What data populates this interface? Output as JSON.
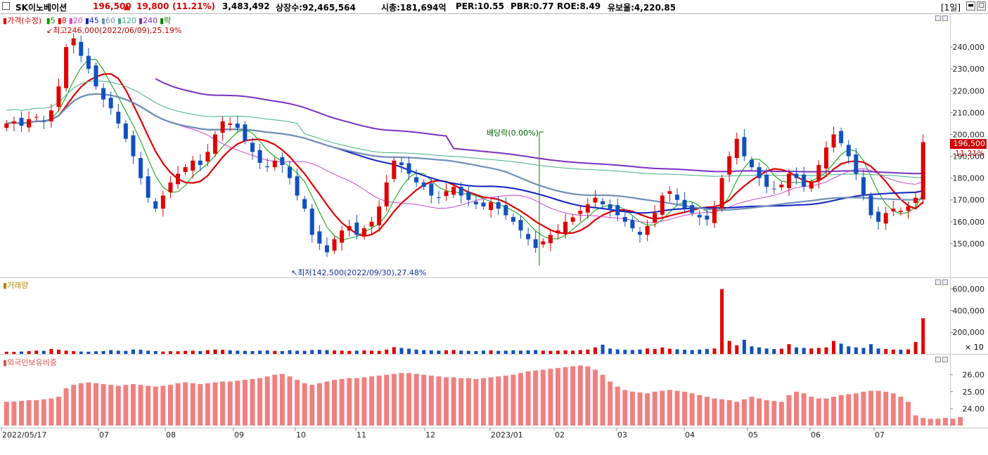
{
  "header": {
    "name": "SK이노베이션",
    "price": "196,500",
    "change_arrow": "▲",
    "change": "19,800",
    "change_pct": "(11.21%)",
    "volume": "3,483,492",
    "listed": "상장수:92,465,564",
    "mcap": "시총:181,694억",
    "per": "PER:10.55",
    "pbr": "PBR:0.77",
    "roe": "ROE:8.49",
    "float": "유보율:4,220.85",
    "period": "[1일]"
  },
  "price_pane": {
    "title": "가격(수정)",
    "legend": [
      {
        "label": "5",
        "color": "#00a000"
      },
      {
        "label": "8",
        "color": "#e00000"
      },
      {
        "label": "20",
        "color": "#cc44cc"
      },
      {
        "label": "45",
        "color": "#1020c0"
      },
      {
        "label": "60",
        "color": "#7090b8"
      },
      {
        "label": "120",
        "color": "#40b080"
      },
      {
        "label": "240",
        "color": "#7a30c0"
      },
      {
        "label": "락",
        "color": "#008000"
      }
    ],
    "high_label": "최고246,000(2022/06/09),25.19%",
    "low_label": "최저142,500(2022/09/30),27.48%",
    "dividend_label": "배당락(0.00%)",
    "current_price_tag": "196,500",
    "current_pct_tag": "11.21%"
  },
  "volume_pane": {
    "title": "거래량",
    "unit": "× 10"
  },
  "foreign_pane": {
    "title": "외국인보유비중"
  },
  "icons": {
    "price_menu": "small-square-icon",
    "window": "window-icon"
  },
  "chart_data": [
    {
      "type": "candlestick",
      "title": "가격(수정)",
      "ylim": [
        140000,
        250000
      ],
      "yticks": [
        "240,000",
        "230,000",
        "220,000",
        "210,000",
        "200,000",
        "190,000",
        "180,000",
        "170,000",
        "160,000",
        "150,000"
      ],
      "x_labels": [
        "2022/05/17",
        "07",
        "08",
        "09",
        "10",
        "11",
        "12",
        "2023/01",
        "02",
        "03",
        "04",
        "05",
        "06",
        "07"
      ],
      "close_series": [
        205000,
        206000,
        204000,
        207000,
        208000,
        206000,
        211000,
        222000,
        240000,
        244000,
        236000,
        230000,
        222000,
        216000,
        212000,
        205000,
        198000,
        190000,
        180000,
        171000,
        166000,
        172000,
        178000,
        182000,
        185000,
        188000,
        186000,
        192000,
        200000,
        206000,
        205000,
        203000,
        197000,
        192000,
        187000,
        185000,
        188000,
        186000,
        180000,
        172000,
        166000,
        154000,
        150000,
        146000,
        152000,
        156000,
        158000,
        154000,
        157000,
        160000,
        167000,
        178000,
        188000,
        186000,
        182000,
        178000,
        176000,
        172000,
        171000,
        174000,
        176000,
        172000,
        170000,
        168000,
        167000,
        169000,
        166000,
        163000,
        160000,
        156000,
        152000,
        148000,
        151000,
        154000,
        156000,
        160000,
        162000,
        165000,
        168000,
        171000,
        168000,
        166000,
        163000,
        160000,
        157000,
        154000,
        158000,
        164000,
        172000,
        174000,
        170000,
        166000,
        164000,
        162000,
        161000,
        166000,
        180000,
        190000,
        198000,
        190000,
        185000,
        180000,
        176000,
        175000,
        177000,
        182000,
        180000,
        176000,
        178000,
        186000,
        194000,
        200000,
        196000,
        190000,
        182000,
        172000,
        163000,
        160000,
        164000,
        166000,
        165000,
        167000,
        171000,
        196500
      ],
      "ma_series": [
        {
          "name": "5"
        },
        {
          "name": "8"
        },
        {
          "name": "20"
        },
        {
          "name": "45"
        },
        {
          "name": "60"
        },
        {
          "name": "120"
        },
        {
          "name": "240"
        }
      ]
    },
    {
      "type": "bar",
      "title": "거래량",
      "yticks": [
        "600,000",
        "400,000",
        "200,000"
      ],
      "ylim": [
        0,
        650000
      ],
      "values": [
        20000,
        18000,
        22000,
        25000,
        30000,
        28000,
        45000,
        38000,
        30000,
        25000,
        22000,
        20000,
        24000,
        26000,
        35000,
        30000,
        28000,
        40000,
        38000,
        30000,
        26000,
        22000,
        25000,
        24000,
        28000,
        30000,
        26000,
        35000,
        40000,
        38000,
        33000,
        30000,
        28000,
        26000,
        30000,
        32000,
        28000,
        26000,
        34000,
        30000,
        28000,
        36000,
        38000,
        35000,
        32000,
        30000,
        28000,
        30000,
        32000,
        30000,
        28000,
        40000,
        62000,
        55000,
        48000,
        40000,
        35000,
        32000,
        30000,
        33000,
        36000,
        30000,
        28000,
        26000,
        30000,
        32000,
        28000,
        30000,
        34000,
        30000,
        32000,
        35000,
        30000,
        28000,
        30000,
        32000,
        30000,
        35000,
        40000,
        60000,
        85000,
        50000,
        42000,
        38000,
        36000,
        40000,
        50000,
        45000,
        60000,
        48000,
        42000,
        38000,
        35000,
        40000,
        45000,
        50000,
        600000,
        120000,
        80000,
        130000,
        70000,
        60000,
        50000,
        45000,
        48000,
        90000,
        60000,
        55000,
        50000,
        55000,
        60000,
        120000,
        95000,
        70000,
        60000,
        55000,
        90000,
        50000,
        45000,
        40000,
        38000,
        42000,
        110000,
        330000
      ]
    },
    {
      "type": "bar",
      "title": "외국인보유비중",
      "yticks": [
        "26.00",
        "25.00",
        "24.00"
      ],
      "ylim": [
        23.0,
        26.9
      ],
      "values": [
        24.4,
        24.42,
        24.45,
        24.5,
        24.5,
        24.55,
        24.6,
        24.7,
        25.2,
        25.4,
        25.5,
        25.55,
        25.5,
        25.45,
        25.4,
        25.35,
        25.4,
        25.45,
        25.4,
        25.35,
        25.3,
        25.35,
        25.4,
        25.5,
        25.55,
        25.5,
        25.45,
        25.5,
        25.55,
        25.6,
        25.6,
        25.65,
        25.7,
        25.75,
        25.8,
        25.9,
        26.0,
        26.05,
        25.9,
        25.7,
        25.5,
        25.4,
        25.5,
        25.6,
        25.7,
        25.75,
        25.8,
        25.8,
        25.85,
        25.9,
        25.95,
        26.0,
        26.05,
        26.1,
        26.1,
        26.05,
        26.0,
        25.95,
        25.9,
        25.85,
        25.85,
        25.8,
        25.8,
        25.75,
        25.8,
        25.85,
        25.9,
        25.95,
        26.0,
        26.1,
        26.2,
        26.25,
        26.3,
        26.35,
        26.4,
        26.45,
        26.5,
        26.55,
        26.5,
        26.3,
        26.0,
        25.6,
        25.3,
        25.1,
        25.0,
        24.95,
        24.9,
        25.0,
        25.05,
        25.1,
        25.05,
        25.0,
        24.9,
        24.8,
        24.7,
        24.6,
        24.55,
        24.5,
        24.4,
        24.55,
        24.7,
        24.6,
        24.5,
        24.45,
        24.4,
        24.8,
        25.0,
        24.9,
        24.7,
        24.6,
        24.6,
        24.7,
        24.8,
        24.85,
        24.9,
        25.0,
        25.05,
        25.05,
        25.0,
        24.9,
        24.7,
        24.4,
        23.6,
        23.45,
        23.4,
        23.4,
        23.45,
        23.4,
        23.5
      ]
    }
  ]
}
